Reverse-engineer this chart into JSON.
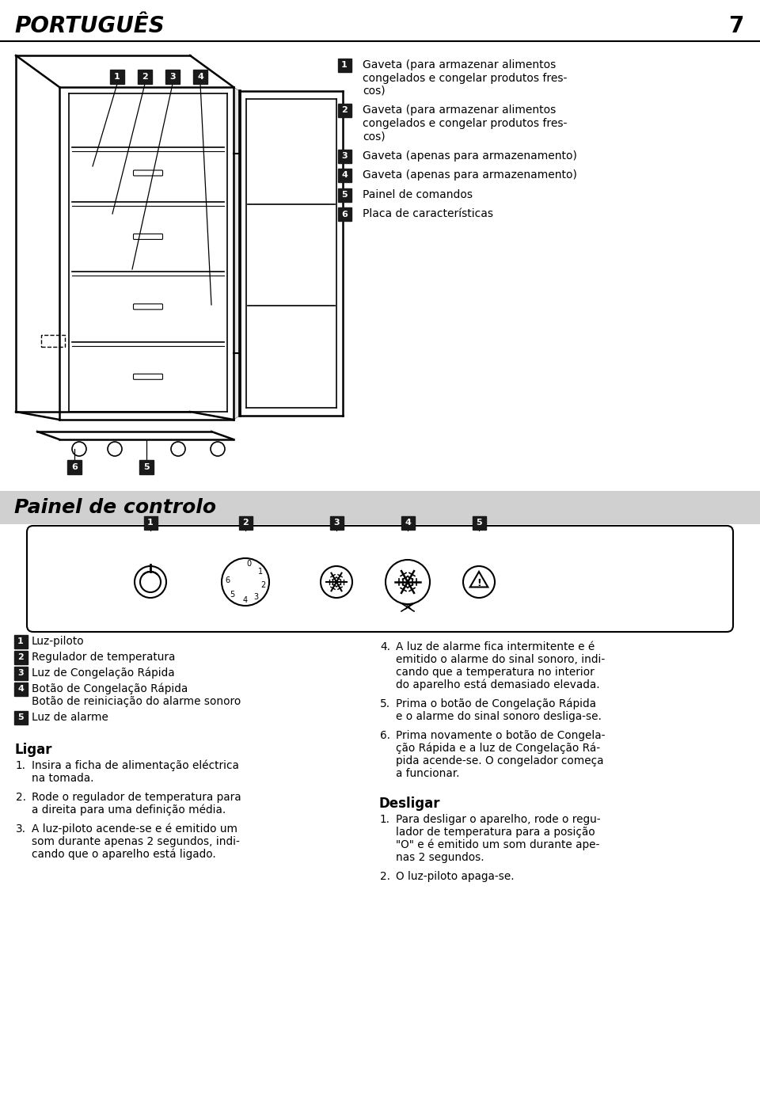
{
  "page_title": "PORTUGUÊS",
  "page_number": "7",
  "section2_title": "Painel de controlo",
  "items_top": [
    {
      "num": "1",
      "text": "Gaveta (para armazenar alimentos\ncongelados e congelar produtos fres-\ncos)"
    },
    {
      "num": "2",
      "text": "Gaveta (para armazenar alimentos\ncongelados e congelar produtos fres-\ncos)"
    },
    {
      "num": "3",
      "text": "Gaveta (apenas para armazenamento)"
    },
    {
      "num": "4",
      "text": "Gaveta (apenas para armazenamento)"
    },
    {
      "num": "5",
      "text": "Painel de comandos"
    },
    {
      "num": "6",
      "text": "Placa de características"
    }
  ],
  "items_panel": [
    {
      "num": "1",
      "text": "Luz-piloto"
    },
    {
      "num": "2",
      "text": "Regulador de temperatura"
    },
    {
      "num": "3",
      "text": "Luz de Congelação Rápida"
    },
    {
      "num": "4",
      "text": "Botão de Congelação Rápida\nBotão de reiniciação do alarme sonoro"
    },
    {
      "num": "5",
      "text": "Luz de alarme"
    }
  ],
  "ligar_title": "Ligar",
  "ligar_steps": [
    "Insira a ficha de alimentação eléctrica\nna tomada.",
    "Rode o regulador de temperatura para\na direita para uma definição média.",
    "A luz-piloto acende-se e é emitido um\nsom durante apenas 2 segundos, indi-\ncando que o aparelho está ligado."
  ],
  "right_steps": [
    "A luz de alarme fica intermitente e é\nemitido o alarme do sinal sonoro, indi-\ncando que a temperatura no interior\ndo aparelho está demasiado elevada.",
    "Prima o botão de Congelação Rápida\ne o alarme do sinal sonoro desliga-se.",
    "Prima novamente o botão de Congela-\nção Rápida e a luz de Congelação Rá-\npida acende-se. O congelador começa\na funcionar."
  ],
  "desligar_title": "Desligar",
  "desligar_steps": [
    "Para desligar o aparelho, rode o regu-\nlador de temperatura para a posição\n\"O\" e é emitido um som durante ape-\nnas 2 segundos.",
    "O luz-piloto apaga-se."
  ],
  "bg_color": "#ffffff",
  "text_color": "#000000",
  "label_bg": "#1a1a1a",
  "label_fg": "#ffffff",
  "section_bg": "#d0d0d0"
}
